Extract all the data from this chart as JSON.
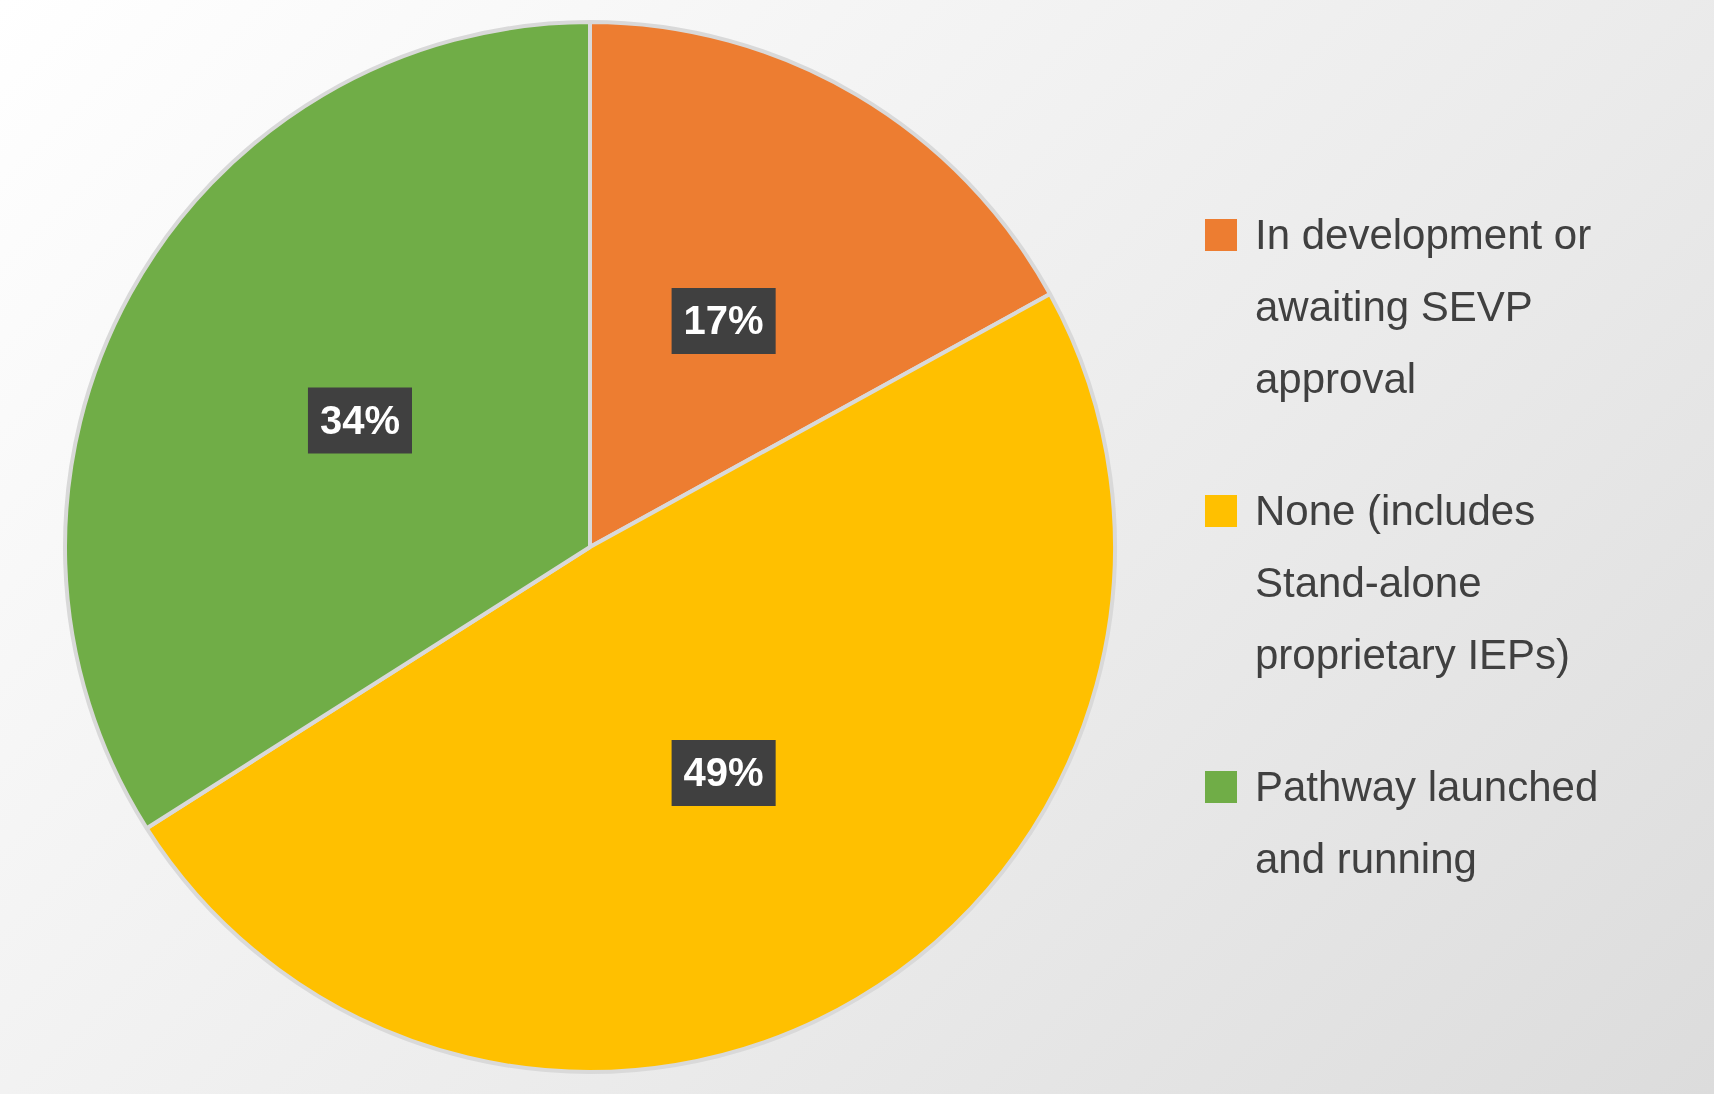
{
  "chart_data": {
    "type": "pie",
    "categories": [
      "In development or awaiting SEVP approval",
      "None (includes Stand-alone proprietary IEPs)",
      "Pathway launched and running"
    ],
    "values": [
      17,
      49,
      34
    ],
    "colors": [
      "#ed7d31",
      "#ffc000",
      "#70ad47"
    ],
    "value_labels": [
      "17%",
      "49%",
      "34%"
    ],
    "legend": "right"
  }
}
